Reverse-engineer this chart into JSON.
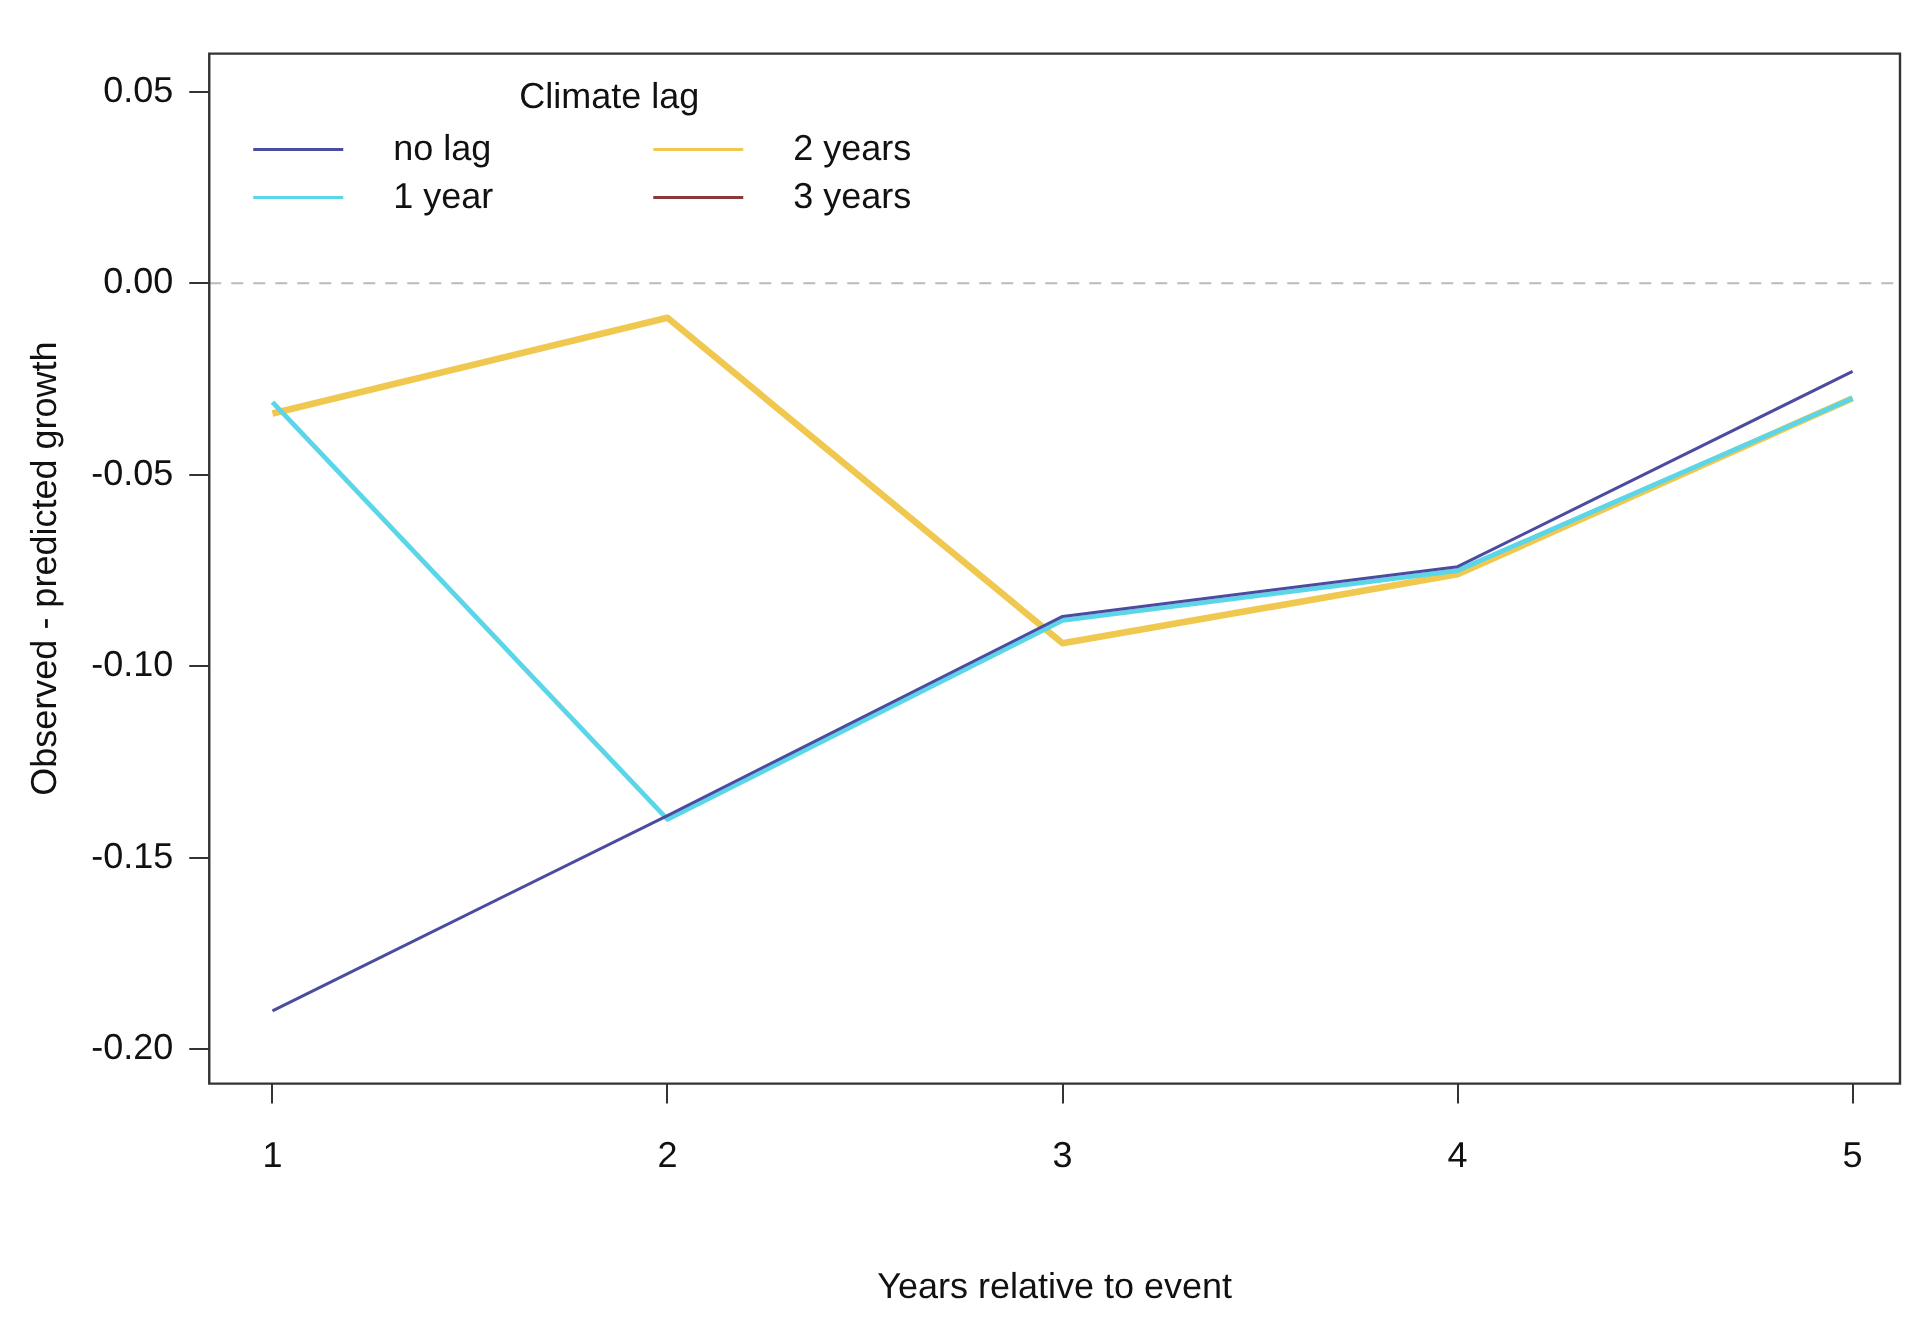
{
  "chart_data": {
    "type": "line",
    "xlabel": "Years relative to event",
    "ylabel": "Observed - predicted growth",
    "legend_title": "Climate lag",
    "x": [
      1,
      2,
      3,
      4,
      5
    ],
    "series": [
      {
        "name": "no lag",
        "color": "#4b4ba0",
        "values": [
          -0.19,
          -0.139,
          -0.087,
          -0.074,
          -0.023
        ]
      },
      {
        "name": "1 year",
        "color": "#5bd5e8",
        "values": [
          -0.031,
          -0.14,
          -0.088,
          -0.075,
          -0.03
        ]
      },
      {
        "name": "2 years",
        "color": "#f0c850",
        "values": [
          -0.034,
          -0.009,
          -0.094,
          -0.076,
          -0.03
        ]
      },
      {
        "name": "3 years",
        "color": "#8b3a3a",
        "values": [
          null,
          null,
          null,
          null,
          null
        ]
      }
    ],
    "xlim": [
      0.84,
      5.12
    ],
    "ylim": [
      -0.209,
      0.06
    ],
    "xticks": [
      1,
      2,
      3,
      4,
      5
    ],
    "yticks": [
      0.05,
      {
        "value": 0,
        "label": "0.00"
      },
      -0.05,
      {
        "value": -0.1,
        "label": "-0.10"
      },
      -0.15,
      {
        "value": -0.2,
        "label": "-0.20"
      }
    ],
    "ref_lines": [
      {
        "axis": "y",
        "value": 0,
        "color": "#bbbbbb",
        "line_style": "dashed"
      }
    ],
    "grid": false,
    "legend": "top left",
    "marker": "none",
    "line_style": "solid"
  }
}
